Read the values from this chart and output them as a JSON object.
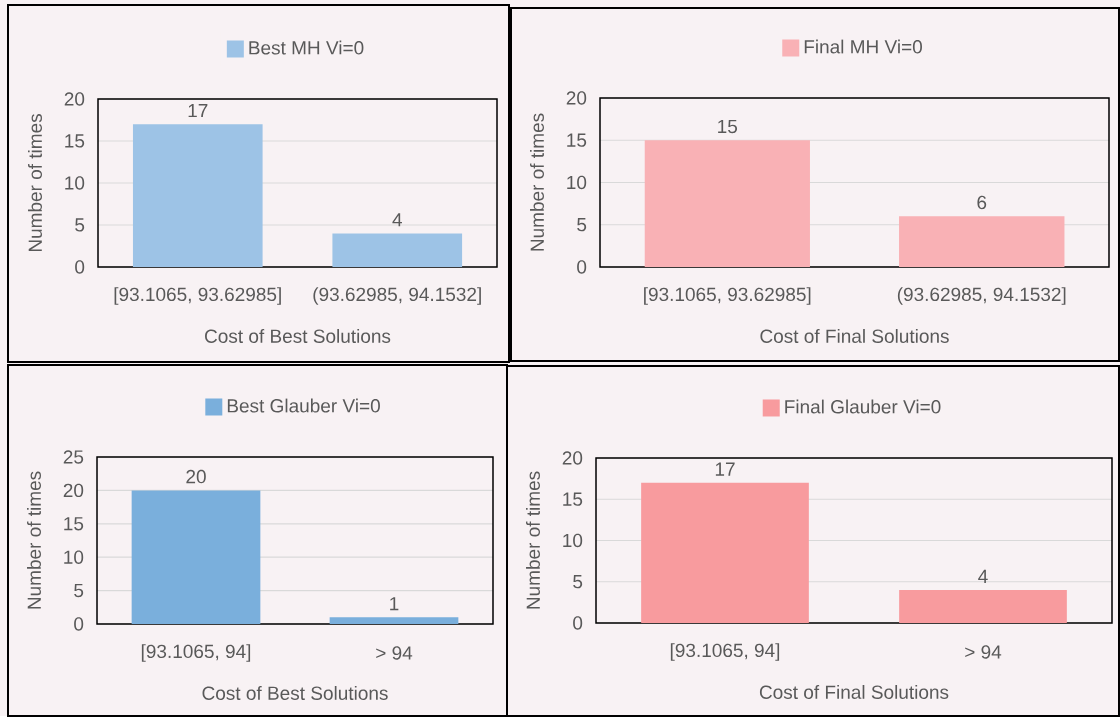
{
  "chart_data": [
    {
      "type": "bar",
      "categories": [
        "[93.1065, 93.62985]",
        "(93.62985, 94.1532]"
      ],
      "series": [
        {
          "name": "Best MH Vi=0",
          "color": "#9dc3e6",
          "values": [
            17,
            4
          ]
        }
      ],
      "xlabel": "Cost of Best Solutions",
      "ylabel": "Number of times",
      "ylim": [
        0,
        20
      ],
      "yticks": [
        0,
        5,
        10,
        15,
        20
      ],
      "grid": "y",
      "legend": "top",
      "data_labels": true
    },
    {
      "type": "bar",
      "categories": [
        "[93.1065, 93.62985]",
        "(93.62985, 94.1532]"
      ],
      "series": [
        {
          "name": "Final MH Vi=0",
          "color": "#f9b1b5",
          "values": [
            15,
            6
          ]
        }
      ],
      "xlabel": "Cost of Final Solutions",
      "ylabel": "Number of times",
      "ylim": [
        0,
        20
      ],
      "yticks": [
        0,
        5,
        10,
        15,
        20
      ],
      "grid": "y",
      "legend": "top",
      "data_labels": true
    },
    {
      "type": "bar",
      "categories": [
        "[93.1065, 94]",
        "> 94"
      ],
      "series": [
        {
          "name": "Best Glauber Vi=0",
          "color": "#7aafdc",
          "values": [
            20,
            1
          ]
        }
      ],
      "xlabel": "Cost of Best Solutions",
      "ylabel": "Number of times",
      "ylim": [
        0,
        25
      ],
      "yticks": [
        0,
        5,
        10,
        15,
        20,
        25
      ],
      "grid": "y",
      "legend": "top",
      "data_labels": true
    },
    {
      "type": "bar",
      "categories": [
        "[93.1065, 94]",
        "> 94"
      ],
      "series": [
        {
          "name": "Final Glauber Vi=0",
          "color": "#f89b9e",
          "values": [
            17,
            4
          ]
        }
      ],
      "xlabel": "Cost of Final Solutions",
      "ylabel": "Number of times",
      "ylim": [
        0,
        20
      ],
      "yticks": [
        0,
        5,
        10,
        15,
        20
      ],
      "grid": "y",
      "legend": "top",
      "data_labels": true
    }
  ]
}
